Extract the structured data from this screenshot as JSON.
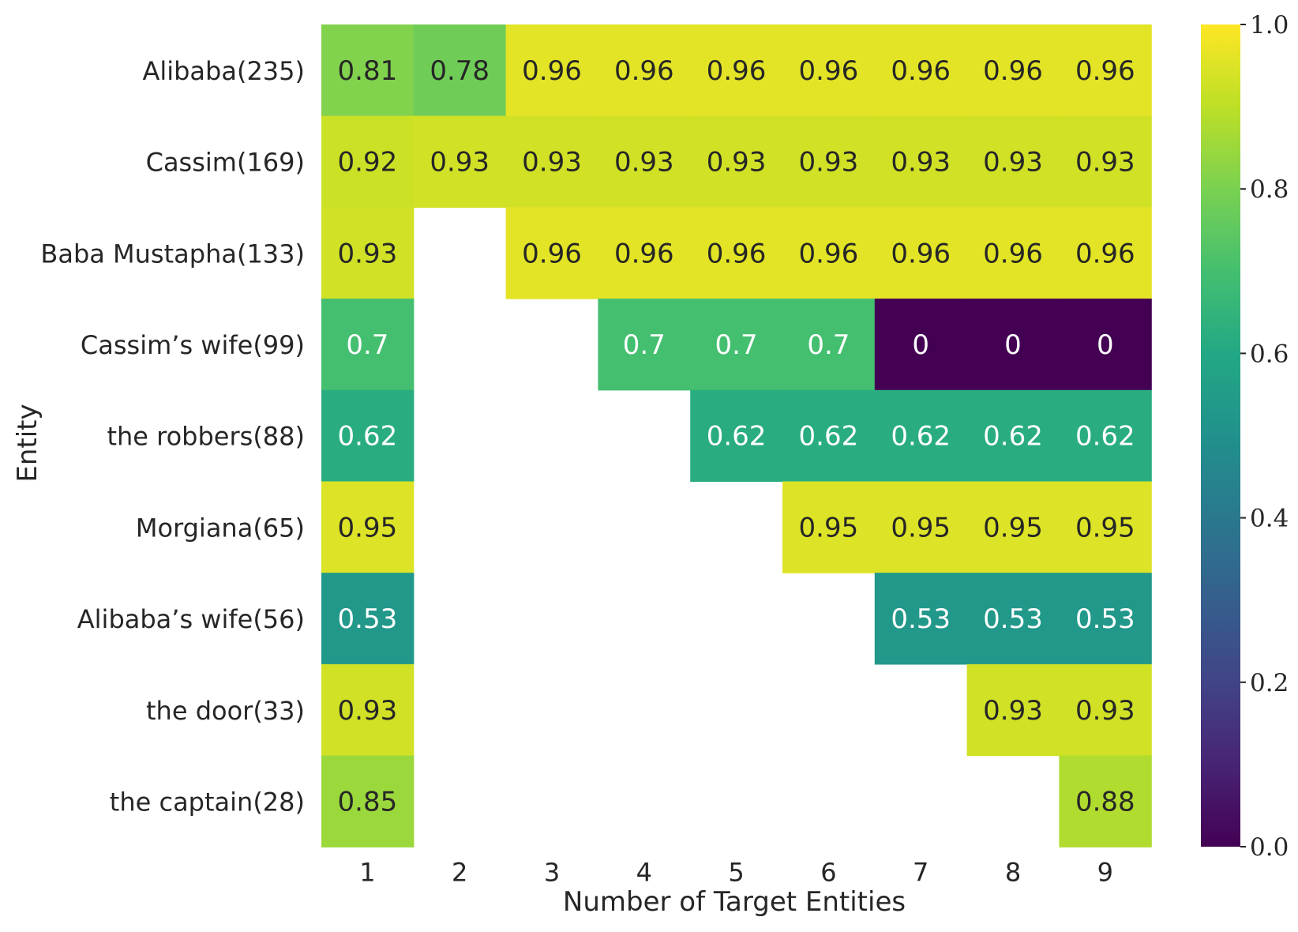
{
  "chart_data": {
    "type": "heatmap",
    "title": "",
    "xlabel": "Number of Target Entities",
    "ylabel": "Entity",
    "columns": [
      "1",
      "2",
      "3",
      "4",
      "5",
      "6",
      "7",
      "8",
      "9"
    ],
    "rows": [
      "Alibaba(235)",
      "Cassim(169)",
      "Baba Mustapha(133)",
      "Cassim’s wife(99)",
      "the robbers(88)",
      "Morgiana(65)",
      "Alibaba’s wife(56)",
      "the door(33)",
      "the captain(28)"
    ],
    "values": [
      [
        0.81,
        0.78,
        0.96,
        0.96,
        0.96,
        0.96,
        0.96,
        0.96,
        0.96
      ],
      [
        0.92,
        0.93,
        0.93,
        0.93,
        0.93,
        0.93,
        0.93,
        0.93,
        0.93
      ],
      [
        0.93,
        null,
        0.96,
        0.96,
        0.96,
        0.96,
        0.96,
        0.96,
        0.96
      ],
      [
        0.7,
        null,
        null,
        0.7,
        0.7,
        0.7,
        0,
        0,
        0
      ],
      [
        0.62,
        null,
        null,
        null,
        0.62,
        0.62,
        0.62,
        0.62,
        0.62
      ],
      [
        0.95,
        null,
        null,
        null,
        null,
        0.95,
        0.95,
        0.95,
        0.95
      ],
      [
        0.53,
        null,
        null,
        null,
        null,
        null,
        0.53,
        0.53,
        0.53
      ],
      [
        0.93,
        null,
        null,
        null,
        null,
        null,
        null,
        0.93,
        0.93
      ],
      [
        0.85,
        null,
        null,
        null,
        null,
        null,
        null,
        null,
        0.88
      ]
    ],
    "cell_labels": [
      [
        "0.81",
        "0.78",
        "0.96",
        "0.96",
        "0.96",
        "0.96",
        "0.96",
        "0.96",
        "0.96"
      ],
      [
        "0.92",
        "0.93",
        "0.93",
        "0.93",
        "0.93",
        "0.93",
        "0.93",
        "0.93",
        "0.93"
      ],
      [
        "0.93",
        null,
        "0.96",
        "0.96",
        "0.96",
        "0.96",
        "0.96",
        "0.96",
        "0.96"
      ],
      [
        "0.7",
        null,
        null,
        "0.7",
        "0.7",
        "0.7",
        "0",
        "0",
        "0"
      ],
      [
        "0.62",
        null,
        null,
        null,
        "0.62",
        "0.62",
        "0.62",
        "0.62",
        "0.62"
      ],
      [
        "0.95",
        null,
        null,
        null,
        null,
        "0.95",
        "0.95",
        "0.95",
        "0.95"
      ],
      [
        "0.53",
        null,
        null,
        null,
        null,
        null,
        "0.53",
        "0.53",
        "0.53"
      ],
      [
        "0.93",
        null,
        null,
        null,
        null,
        null,
        null,
        "0.93",
        "0.93"
      ],
      [
        "0.85",
        null,
        null,
        null,
        null,
        null,
        null,
        null,
        "0.88"
      ]
    ],
    "colormap": "viridis",
    "vmin": 0.0,
    "vmax": 1.0,
    "colorbar_ticks": [
      0.0,
      0.2,
      0.4,
      0.6,
      0.8,
      1.0
    ],
    "colorbar_tick_labels": [
      "0.0",
      "0.2",
      "0.4",
      "0.6",
      "0.8",
      "1.0"
    ],
    "colorbar_placement": "right"
  }
}
